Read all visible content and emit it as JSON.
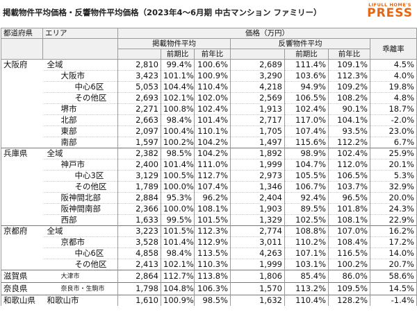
{
  "header": {
    "title": "掲載物件平均価格・反響物件平均価格（2023年4～6月期 中古マンション ファミリー）",
    "logo_top": "LIFULL HOME'S",
    "logo_bottom": "PRESS"
  },
  "table": {
    "head": {
      "pref": "都道府県",
      "area": "エリア",
      "price": "価格（万円）",
      "listed": "掲載物件平均",
      "inquired": "反響物件平均",
      "gap": "乖離率",
      "qoq1": "前期比",
      "yoy1": "前年比",
      "qoq2": "前期比",
      "yoy2": "前年比"
    },
    "rows": [
      [
        "大阪府",
        "全域",
        null,
        null,
        "2,810",
        "99.4%",
        "100.6%",
        "2,689",
        "111.4%",
        "109.1%",
        "4.5%"
      ],
      [
        null,
        null,
        "大阪市",
        null,
        "3,423",
        "101.1%",
        "100.9%",
        "3,290",
        "103.6%",
        "112.3%",
        "4.0%"
      ],
      [
        null,
        null,
        null,
        "中心6区",
        "5,053",
        "104.4%",
        "110.4%",
        "4,218",
        "94.9%",
        "109.2%",
        "19.8%"
      ],
      [
        null,
        null,
        null,
        "その他区",
        "2,693",
        "102.1%",
        "102.0%",
        "2,569",
        "106.5%",
        "108.2%",
        "4.8%"
      ],
      [
        null,
        null,
        "堺市",
        null,
        "2,271",
        "100.8%",
        "102.4%",
        "1,913",
        "102.4%",
        "90.1%",
        "18.7%"
      ],
      [
        null,
        null,
        "北部",
        null,
        "2,663",
        "98.4%",
        "101.4%",
        "2,717",
        "117.0%",
        "104.1%",
        "-2.0%"
      ],
      [
        null,
        null,
        "東部",
        null,
        "2,097",
        "100.4%",
        "110.1%",
        "1,705",
        "107.4%",
        "93.5%",
        "23.0%"
      ],
      [
        null,
        null,
        "南部",
        null,
        "1,597",
        "100.2%",
        "104.2%",
        "1,497",
        "115.6%",
        "112.2%",
        "6.7%"
      ],
      [
        "兵庫県",
        "全域",
        null,
        null,
        "2,382",
        "98.5%",
        "104.2%",
        "1,892",
        "98.9%",
        "102.4%",
        "25.9%"
      ],
      [
        null,
        null,
        "神戸市",
        null,
        "2,400",
        "101.4%",
        "111.0%",
        "1,999",
        "104.7%",
        "112.0%",
        "20.1%"
      ],
      [
        null,
        null,
        null,
        "中心3区",
        "3,129",
        "100.5%",
        "112.7%",
        "2,973",
        "105.5%",
        "106.5%",
        "5.3%"
      ],
      [
        null,
        null,
        null,
        "その他区",
        "1,789",
        "100.0%",
        "107.4%",
        "1,346",
        "106.7%",
        "103.7%",
        "32.9%"
      ],
      [
        null,
        null,
        "阪神間北部",
        null,
        "2,884",
        "95.3%",
        "96.2%",
        "2,404",
        "92.4%",
        "96.5%",
        "20.0%"
      ],
      [
        null,
        null,
        "阪神間南部",
        null,
        "2,366",
        "100.0%",
        "108.1%",
        "1,903",
        "89.5%",
        "101.8%",
        "24.3%"
      ],
      [
        null,
        null,
        "西部",
        null,
        "1,633",
        "99.5%",
        "101.5%",
        "1,329",
        "102.5%",
        "108.1%",
        "22.9%"
      ],
      [
        "京都府",
        "全域",
        null,
        null,
        "3,223",
        "101.5%",
        "112.3%",
        "2,774",
        "108.8%",
        "107.0%",
        "16.2%"
      ],
      [
        null,
        null,
        "京都市",
        null,
        "3,528",
        "101.4%",
        "112.9%",
        "3,011",
        "110.2%",
        "108.4%",
        "17.2%"
      ],
      [
        null,
        null,
        null,
        "中心6区",
        "4,858",
        "98.4%",
        "113.5%",
        "4,263",
        "107.1%",
        "116.5%",
        "14.0%"
      ],
      [
        null,
        null,
        null,
        "その他区",
        "2,413",
        "102.1%",
        "110.3%",
        "1,999",
        "103.1%",
        "100.2%",
        "20.7%"
      ],
      [
        "滋賀県",
        null,
        "大津市",
        null,
        "2,864",
        "112.7%",
        "113.8%",
        "1,806",
        "85.4%",
        "86.0%",
        "58.6%"
      ],
      [
        "奈良県",
        null,
        "奈良市・生駒市",
        null,
        "1,798",
        "104.8%",
        "106.3%",
        "1,570",
        "113.2%",
        "109.5%",
        "14.5%"
      ],
      [
        "和歌山県",
        "和歌山市",
        null,
        null,
        "1,610",
        "100.9%",
        "98.5%",
        "1,632",
        "110.4%",
        "128.2%",
        "-1.4%"
      ]
    ]
  }
}
